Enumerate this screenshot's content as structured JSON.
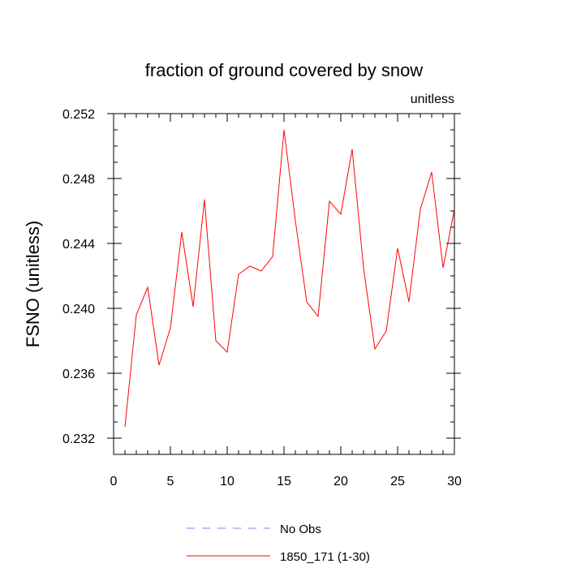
{
  "chart_data": {
    "type": "line",
    "title": "fraction of ground covered by snow",
    "units_label": "unitless",
    "ylabel": "FSNO  (unitless)",
    "xlabel": "",
    "xlim": [
      0,
      30
    ],
    "ylim": [
      0.231,
      0.252
    ],
    "x_ticks": [
      0,
      5,
      10,
      15,
      20,
      25,
      30
    ],
    "x_tick_labels": [
      "0",
      "5",
      "10",
      "15",
      "20",
      "25",
      "30"
    ],
    "y_ticks": [
      0.232,
      0.236,
      0.24,
      0.244,
      0.248,
      0.252
    ],
    "y_tick_labels": [
      "0.232",
      "0.236",
      "0.240",
      "0.244",
      "0.248",
      "0.252"
    ],
    "grid": false,
    "legend_position": "bottom",
    "series": [
      {
        "name": "1850_171 (1-30)",
        "color": "#ff0000",
        "x": [
          1,
          2,
          3,
          4,
          5,
          6,
          7,
          8,
          9,
          10,
          11,
          12,
          13,
          14,
          15,
          16,
          17,
          18,
          19,
          20,
          21,
          22,
          23,
          24,
          25,
          26,
          27,
          28,
          29,
          30
        ],
        "values": [
          0.2327,
          0.2396,
          0.2413,
          0.2365,
          0.2388,
          0.2447,
          0.2401,
          0.2467,
          0.238,
          0.2373,
          0.2421,
          0.2426,
          0.2423,
          0.2432,
          0.251,
          0.2454,
          0.2404,
          0.2395,
          0.2466,
          0.2458,
          0.2498,
          0.2425,
          0.2375,
          0.2386,
          0.2437,
          0.2404,
          0.2461,
          0.2484,
          0.2425,
          0.2461
        ]
      }
    ],
    "legend": [
      {
        "label": "No Obs",
        "color": "#8080ff",
        "style": "dashed"
      },
      {
        "label": "1850_171 (1-30)",
        "color": "#ff0000",
        "style": "solid"
      }
    ]
  }
}
